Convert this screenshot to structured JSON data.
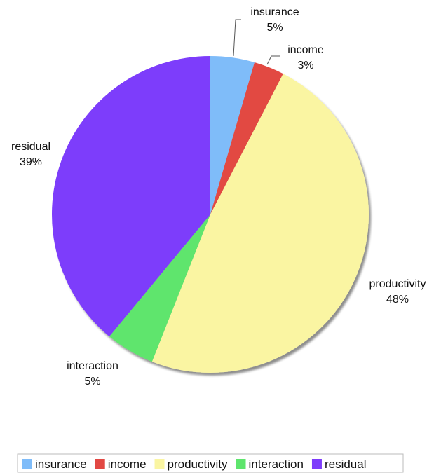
{
  "chart_data": {
    "type": "pie",
    "start": "12 o'clock",
    "direction": "clockwise",
    "labels_show": "name and percent",
    "legend_placement": "bottom",
    "series": [
      {
        "name": "insurance",
        "value": 4.5,
        "percent_label": "5%",
        "color": "#7fbcf9"
      },
      {
        "name": "income",
        "value": 3.1,
        "percent_label": "3%",
        "color": "#e24843"
      },
      {
        "name": "productivity",
        "value": 48.4,
        "percent_label": "48%",
        "color": "#faf5a2"
      },
      {
        "name": "interaction",
        "value": 5.0,
        "percent_label": "5%",
        "color": "#5ee56d"
      },
      {
        "name": "residual",
        "value": 39.0,
        "percent_label": "39%",
        "color": "#7d3cfb"
      }
    ]
  }
}
